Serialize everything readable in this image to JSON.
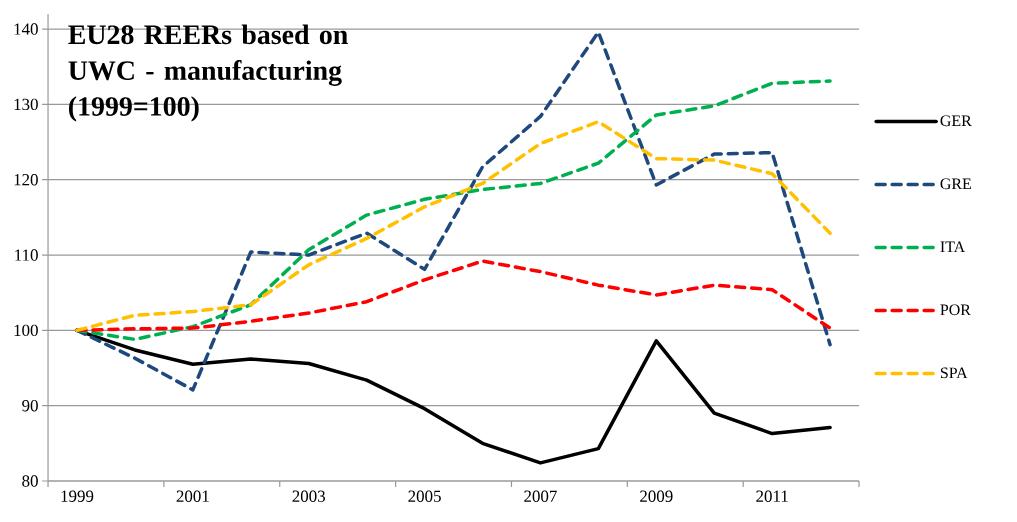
{
  "chart_data": {
    "type": "line",
    "title": "EU28 REERs based on UWC - manufacturing (1999=100)",
    "categories": [
      "1999",
      null,
      "2001",
      null,
      "2003",
      null,
      "2005",
      null,
      "2007",
      null,
      "2009",
      null,
      "2011",
      null
    ],
    "series": [
      {
        "name": "GER",
        "color": "#000000",
        "line_style": "solid",
        "values": [
          100,
          97.4,
          95.5,
          96.2,
          95.6,
          93.4,
          89.6,
          85.0,
          82.4,
          84.3,
          98.6,
          89.0,
          86.3,
          87.1
        ]
      },
      {
        "name": "GRE",
        "color": "#1f497d",
        "line_style": "dashed",
        "values": [
          100,
          96.3,
          92.1,
          110.4,
          110.0,
          112.9,
          108.1,
          121.7,
          128.4,
          139.6,
          119.3,
          123.4,
          123.6,
          98.1
        ]
      },
      {
        "name": "ITA",
        "color": "#00b050",
        "line_style": "dashed",
        "values": [
          100,
          98.8,
          100.5,
          103.4,
          110.7,
          115.3,
          117.4,
          118.7,
          119.5,
          122.2,
          128.6,
          129.8,
          132.8,
          133.1
        ]
      },
      {
        "name": "POR",
        "color": "#ff0000",
        "line_style": "dashed",
        "values": [
          100,
          100.2,
          100.3,
          101.2,
          102.3,
          103.8,
          106.7,
          109.2,
          107.8,
          106.0,
          104.7,
          106.0,
          105.4,
          100.3
        ]
      },
      {
        "name": "SPA",
        "color": "#ffc000",
        "line_style": "dashed",
        "values": [
          100,
          102.0,
          102.5,
          103.4,
          108.7,
          112.2,
          116.4,
          119.5,
          124.8,
          127.7,
          122.8,
          122.6,
          120.8,
          112.9
        ]
      }
    ],
    "ylim": [
      80,
      142
    ],
    "yticks": [
      80,
      90,
      100,
      110,
      120,
      130,
      140
    ],
    "grid": "y",
    "legend": "right",
    "marker": "none"
  }
}
